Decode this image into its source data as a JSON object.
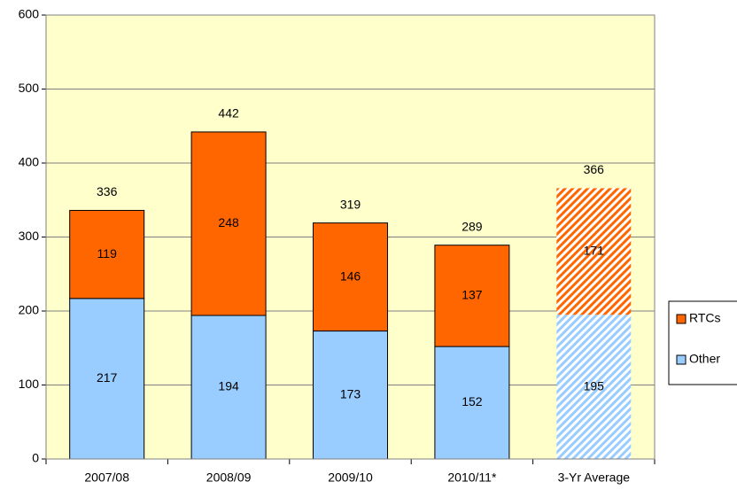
{
  "chart_data": {
    "type": "stacked_bar",
    "categories": [
      "2007/08",
      "2008/09",
      "2009/10",
      "2010/11*",
      "3-Yr Average"
    ],
    "series": [
      {
        "name": "Other",
        "color": "#99ccff",
        "values": [
          217,
          194,
          173,
          152,
          195
        ]
      },
      {
        "name": "RTCs",
        "color": "#ff6600",
        "values": [
          119,
          248,
          146,
          137,
          171
        ]
      }
    ],
    "totals": [
      336,
      442,
      319,
      289,
      366
    ],
    "hatched": [
      false,
      false,
      false,
      false,
      true
    ],
    "ylim": [
      0,
      600
    ],
    "yticks": [
      0,
      100,
      200,
      300,
      400,
      500,
      600
    ],
    "grid": true,
    "plot_background": "#ffffcc",
    "legend": "right"
  }
}
